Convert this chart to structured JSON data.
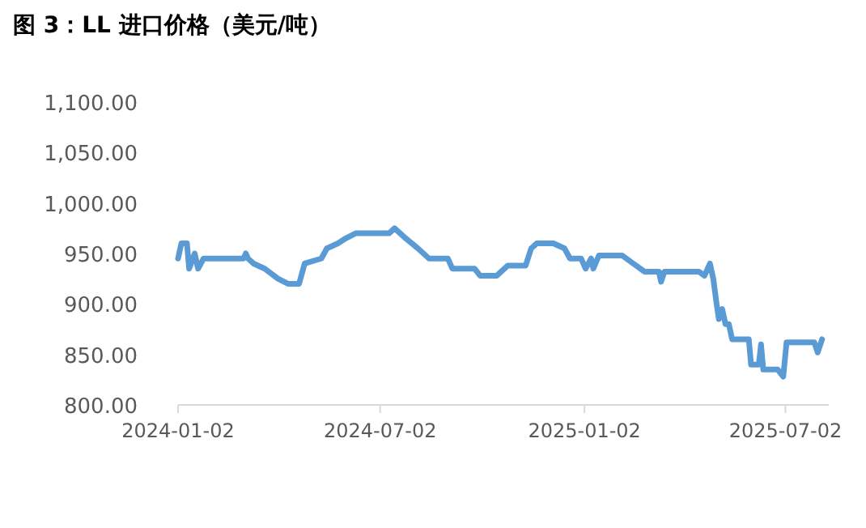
{
  "chart_data": {
    "type": "line",
    "title": "图 3：LL 进口价格（美元/吨）",
    "x": [
      "2024-01-02",
      "2024-01-05",
      "2024-01-10",
      "2024-01-12",
      "2024-01-17",
      "2024-01-20",
      "2024-01-25",
      "2024-03-01",
      "2024-03-03",
      "2024-03-05",
      "2024-03-10",
      "2024-03-20",
      "2024-04-01",
      "2024-04-10",
      "2024-04-20",
      "2024-04-25",
      "2024-05-10",
      "2024-05-15",
      "2024-05-25",
      "2024-06-01",
      "2024-06-10",
      "2024-07-10",
      "2024-07-15",
      "2024-07-25",
      "2024-08-05",
      "2024-08-15",
      "2024-09-01",
      "2024-09-05",
      "2024-09-25",
      "2024-09-30",
      "2024-10-15",
      "2024-10-25",
      "2024-11-10",
      "2024-11-15",
      "2024-11-20",
      "2024-12-05",
      "2024-12-15",
      "2024-12-20",
      "2024-12-30",
      "2025-01-03",
      "2025-01-08",
      "2025-01-10",
      "2025-01-15",
      "2025-02-05",
      "2025-02-15",
      "2025-02-25",
      "2025-03-10",
      "2025-03-12",
      "2025-03-15",
      "2025-04-15",
      "2025-04-20",
      "2025-04-25",
      "2025-04-28",
      "2025-05-01",
      "2025-05-03",
      "2025-05-06",
      "2025-05-09",
      "2025-05-12",
      "2025-05-15",
      "2025-05-30",
      "2025-06-01",
      "2025-06-08",
      "2025-06-10",
      "2025-06-12",
      "2025-06-25",
      "2025-06-30",
      "2025-07-03",
      "2025-07-28",
      "2025-07-31",
      "2025-08-04"
    ],
    "series": [
      {
        "color": "#5b9bd5",
        "values": [
          945,
          960,
          960,
          935,
          950,
          935,
          945,
          945,
          950,
          945,
          940,
          935,
          925,
          920,
          920,
          940,
          945,
          955,
          960,
          965,
          970,
          970,
          975,
          965,
          955,
          945,
          945,
          935,
          935,
          928,
          928,
          938,
          938,
          955,
          960,
          960,
          955,
          945,
          945,
          935,
          945,
          935,
          948,
          948,
          940,
          932,
          932,
          922,
          932,
          932,
          928,
          940,
          925,
          900,
          885,
          895,
          880,
          880,
          865,
          865,
          840,
          840,
          860,
          835,
          835,
          828,
          862,
          862,
          852,
          865
        ]
      }
    ],
    "xlim": [
      "2024-01-02",
      "2025-08-10"
    ],
    "xticks": [
      "2024-01-02",
      "2024-07-02",
      "2025-01-02",
      "2025-07-02"
    ],
    "ylim": [
      800,
      1100
    ],
    "yticks": [
      {
        "value": 800,
        "label": "800.00"
      },
      {
        "value": 850,
        "label": "850.00"
      },
      {
        "value": 900,
        "label": "900.00"
      },
      {
        "value": 950,
        "label": "950.00"
      },
      {
        "value": 1000,
        "label": "1,000.00"
      },
      {
        "value": 1050,
        "label": "1,050.00"
      },
      {
        "value": 1100,
        "label": "1,100.00"
      }
    ],
    "grid": false,
    "marker": "none",
    "line_style": "solid"
  }
}
